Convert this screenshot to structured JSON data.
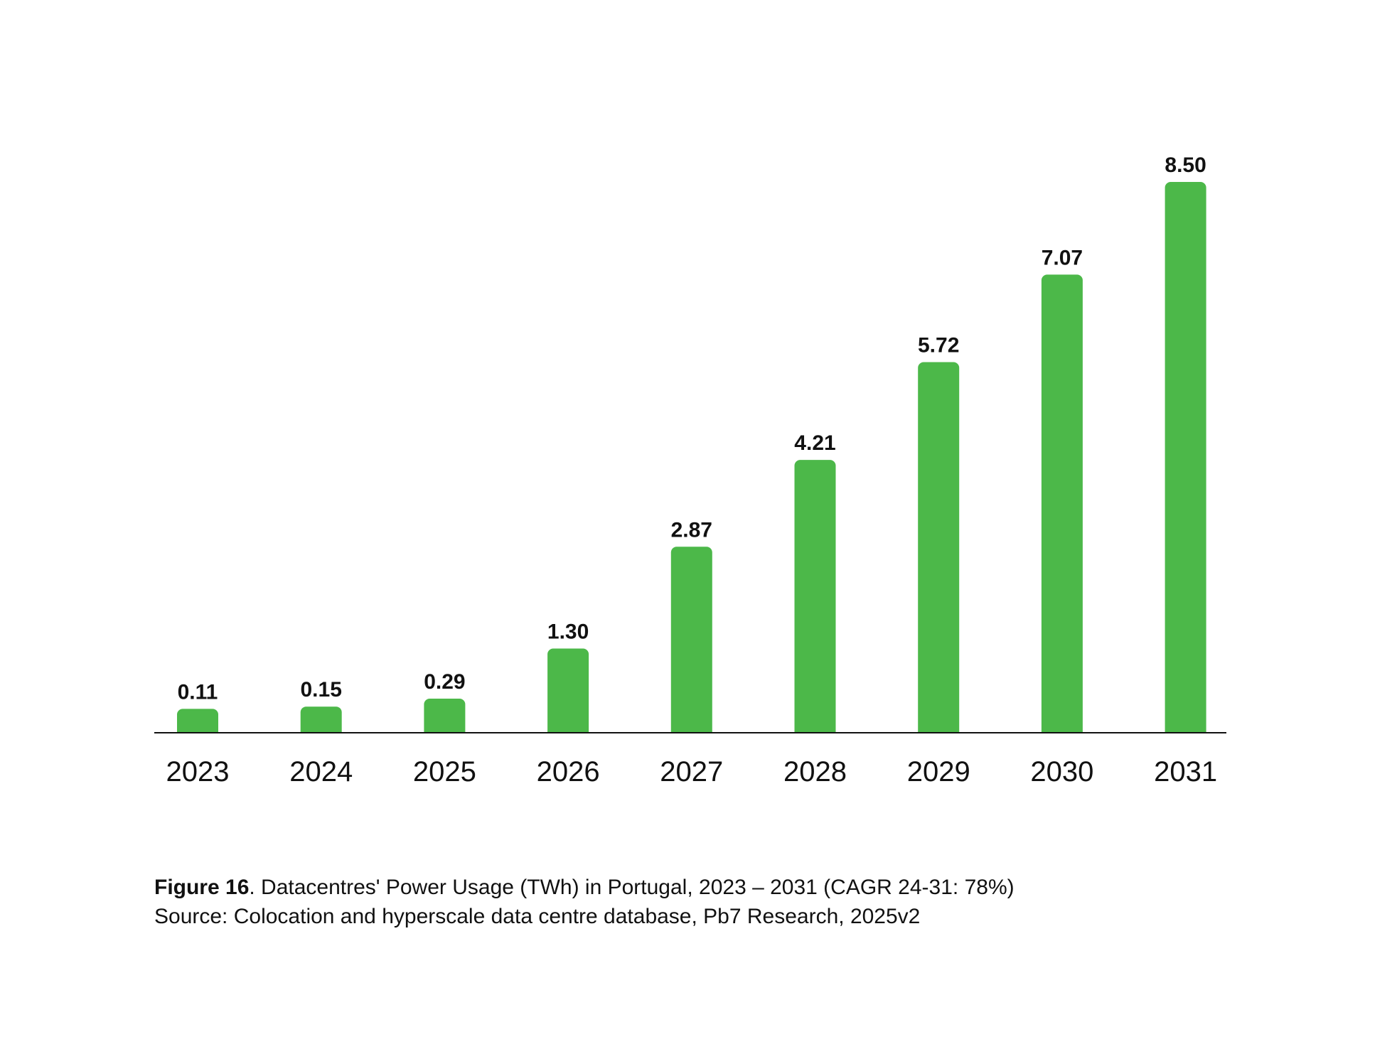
{
  "chart_data": {
    "type": "bar",
    "categories": [
      "2023",
      "2024",
      "2025",
      "2026",
      "2027",
      "2028",
      "2029",
      "2030",
      "2031"
    ],
    "values": [
      0.11,
      0.15,
      0.29,
      1.3,
      2.87,
      4.21,
      5.72,
      7.07,
      8.5
    ],
    "value_labels": [
      "0.11",
      "0.15",
      "0.29",
      "1.30",
      "2.87",
      "4.21",
      "5.72",
      "7.07",
      "8.50"
    ],
    "title": "",
    "xlabel": "",
    "ylabel": "",
    "ylim": [
      0,
      8.5
    ],
    "grid": false,
    "legend": "none",
    "bar_color": "#4cb849"
  },
  "caption": {
    "figure_number": "Figure 16",
    "figure_text": ". Datacentres' Power Usage (TWh) in Portugal, 2023 – 2031 (CAGR 24-31: 78%)",
    "source": "Source: Colocation and hyperscale data centre database, Pb7 Research, 2025v2"
  }
}
